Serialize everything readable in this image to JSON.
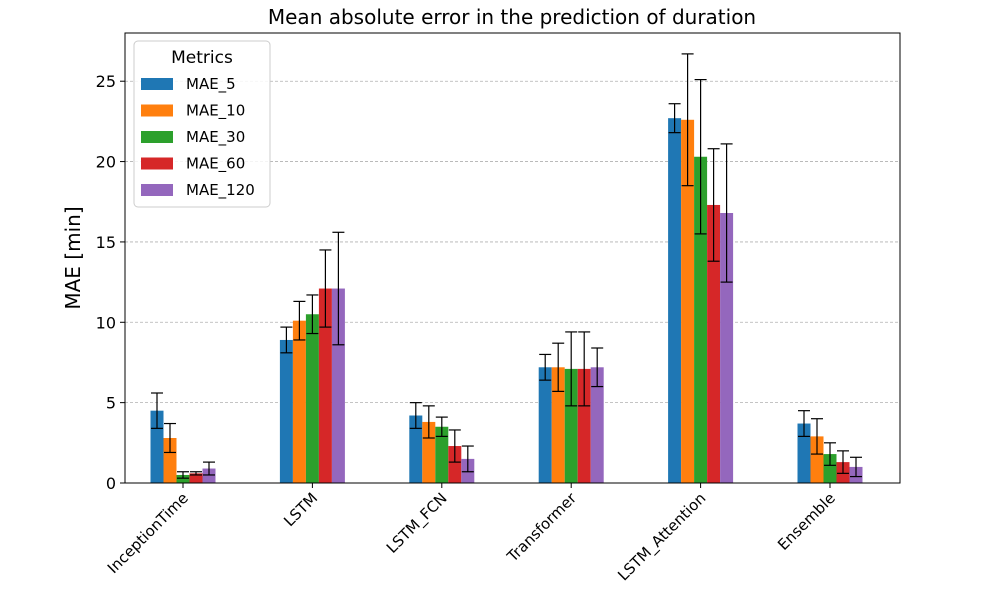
{
  "chart_data": {
    "type": "bar",
    "title": "Mean absolute error in the prediction of duration",
    "xlabel": "",
    "ylabel": "MAE [min]",
    "ylim": [
      0,
      28
    ],
    "yticks": [
      0,
      5,
      10,
      15,
      20,
      25
    ],
    "grid": "horizontal dashed",
    "legend_title": "Metrics",
    "legend_position": "top-left",
    "categories": [
      "InceptionTime",
      "LSTM",
      "LSTM_FCN",
      "Transformer",
      "LSTM_Attention",
      "Ensemble"
    ],
    "series": [
      {
        "name": "MAE_5",
        "color": "#1f77b4",
        "values": [
          4.5,
          8.9,
          4.2,
          7.2,
          22.7,
          3.7
        ],
        "errors": [
          1.1,
          0.8,
          0.8,
          0.8,
          0.9,
          0.8
        ]
      },
      {
        "name": "MAE_10",
        "color": "#ff7f0e",
        "values": [
          2.8,
          10.1,
          3.8,
          7.2,
          22.6,
          2.9
        ],
        "errors": [
          0.9,
          1.2,
          1.0,
          1.5,
          4.1,
          1.1
        ]
      },
      {
        "name": "MAE_30",
        "color": "#2ca02c",
        "values": [
          0.5,
          10.5,
          3.5,
          7.1,
          20.3,
          1.8
        ],
        "errors": [
          0.2,
          1.2,
          0.6,
          2.3,
          4.8,
          0.7
        ]
      },
      {
        "name": "MAE_60",
        "color": "#d62728",
        "values": [
          0.6,
          12.1,
          2.3,
          7.1,
          17.3,
          1.3
        ],
        "errors": [
          0.1,
          2.4,
          1.0,
          2.3,
          3.5,
          0.7
        ]
      },
      {
        "name": "MAE_120",
        "color": "#9467bd",
        "values": [
          0.9,
          12.1,
          1.5,
          7.2,
          16.8,
          1.0
        ],
        "errors": [
          0.4,
          3.5,
          0.8,
          1.2,
          4.3,
          0.6
        ]
      }
    ]
  }
}
